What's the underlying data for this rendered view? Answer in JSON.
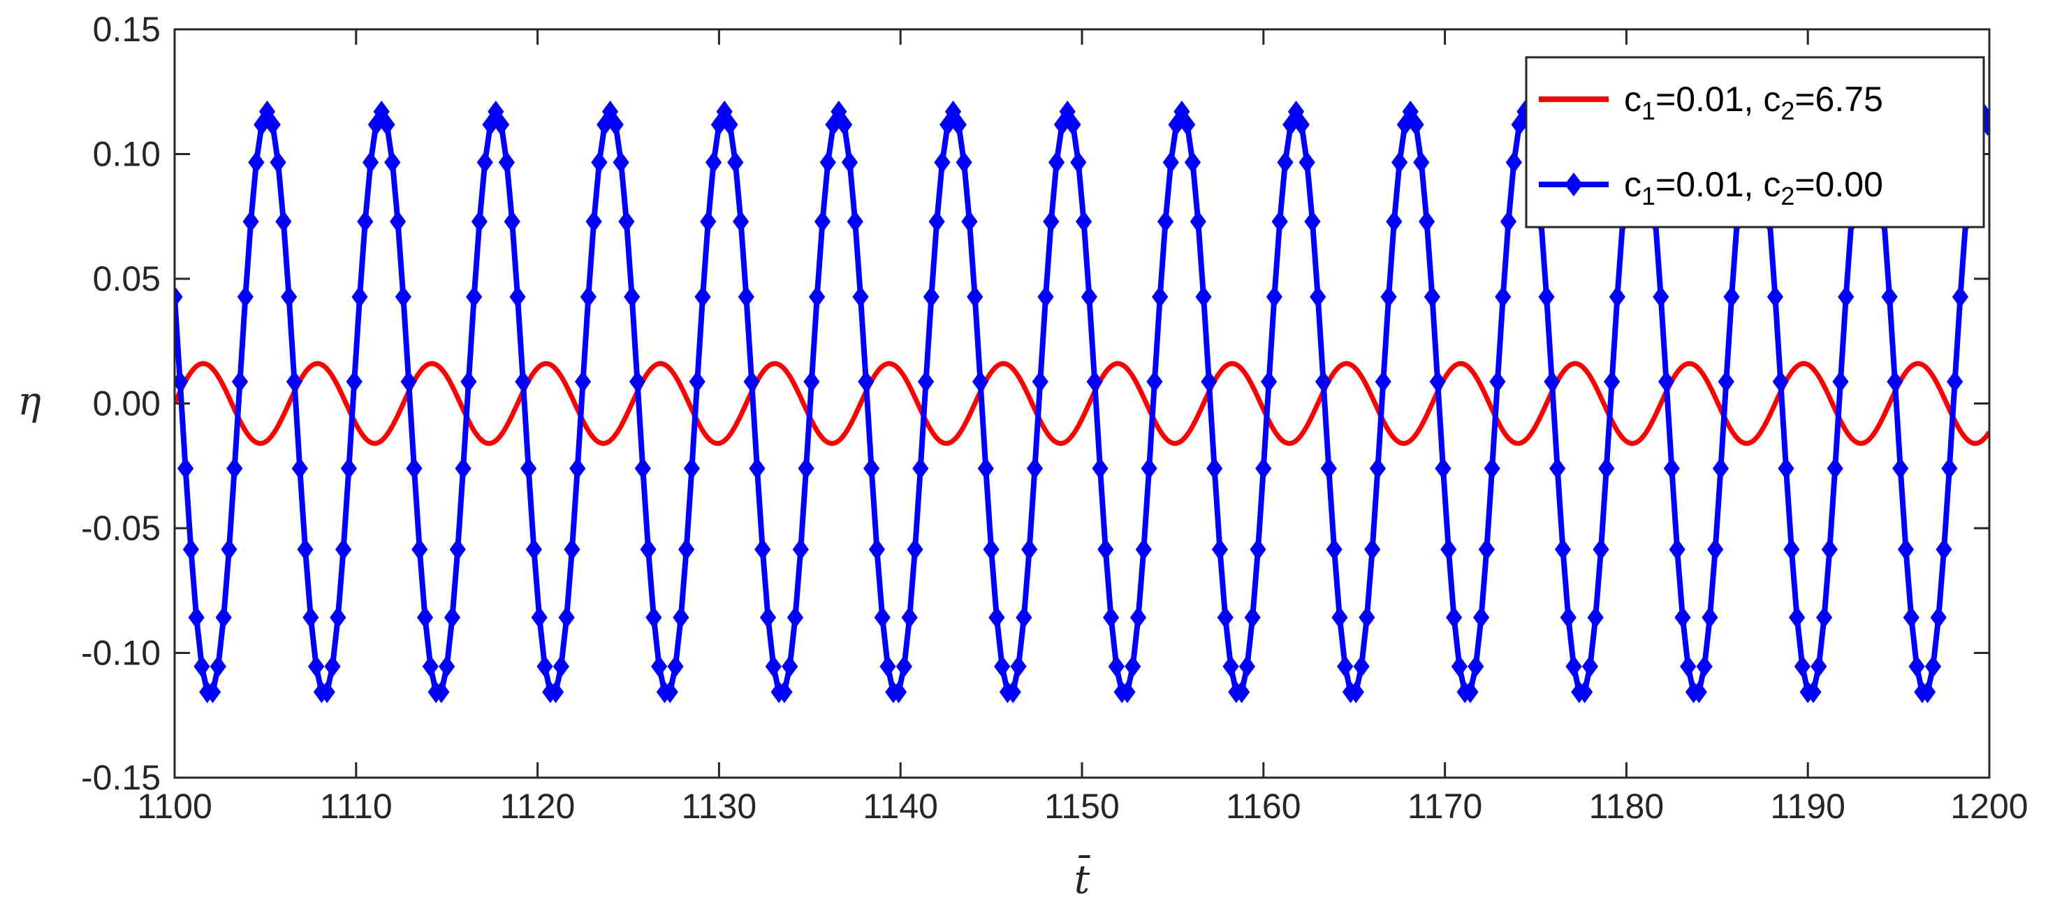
{
  "chart_data": {
    "type": "line",
    "title": "",
    "xlabel": "t̄",
    "ylabel": "η",
    "xlim": [
      1100,
      1200
    ],
    "ylim": [
      -0.15,
      0.15
    ],
    "xticks": [
      1100,
      1110,
      1120,
      1130,
      1140,
      1150,
      1160,
      1170,
      1180,
      1190,
      1200
    ],
    "yticks": [
      0.15,
      0.1,
      0.05,
      0.0,
      -0.05,
      -0.1,
      -0.15
    ],
    "xtick_labels": [
      "1100",
      "1110",
      "1120",
      "1130",
      "1140",
      "1150",
      "1160",
      "1170",
      "1180",
      "1190",
      "1200"
    ],
    "ytick_labels": [
      "0.15",
      "0.10",
      "0.05",
      "0.00",
      "-0.05",
      "-0.10",
      "-0.15"
    ],
    "grid": false,
    "legend_position": "top-right",
    "series": [
      {
        "name": "c1=0.01, c2=6.75",
        "legend": {
          "pre1": "c",
          "sub1": "1",
          "mid": "=0.01, c",
          "sub2": "2",
          "post": "=6.75"
        },
        "color": "#ff0000",
        "marker": "none",
        "amplitude": 0.016,
        "period": 6.3,
        "zero_crossing_up": 1100.0,
        "x_start": 1100,
        "x_end": 1200
      },
      {
        "name": "c1=0.01, c2=0.00",
        "legend": {
          "pre1": "c",
          "sub1": "1",
          "mid": "=0.01, c",
          "sub2": "2",
          "post": "=0.00"
        },
        "color": "#0000ff",
        "marker": "diamond",
        "amplitude": 0.117,
        "period": 6.3,
        "peak_at": 1105.1,
        "x_start": 1100,
        "x_end": 1199.9,
        "marker_step": 0.3
      }
    ]
  }
}
